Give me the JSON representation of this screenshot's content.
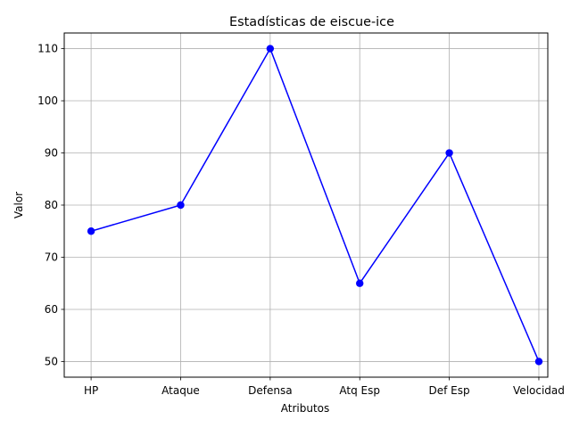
{
  "chart_data": {
    "type": "line",
    "title": "Estadísticas de eiscue-ice",
    "xlabel": "Atributos",
    "ylabel": "Valor",
    "categories": [
      "HP",
      "Ataque",
      "Defensa",
      "Atq Esp",
      "Def Esp",
      "Velocidad"
    ],
    "series": [
      {
        "values": [
          75,
          80,
          110,
          65,
          90,
          50
        ],
        "color": "#0000ff",
        "marker": "circle"
      }
    ],
    "ylim": [
      47,
      113
    ],
    "yticks": [
      50,
      60,
      70,
      80,
      90,
      100,
      110
    ],
    "grid": true,
    "legend": "none"
  }
}
